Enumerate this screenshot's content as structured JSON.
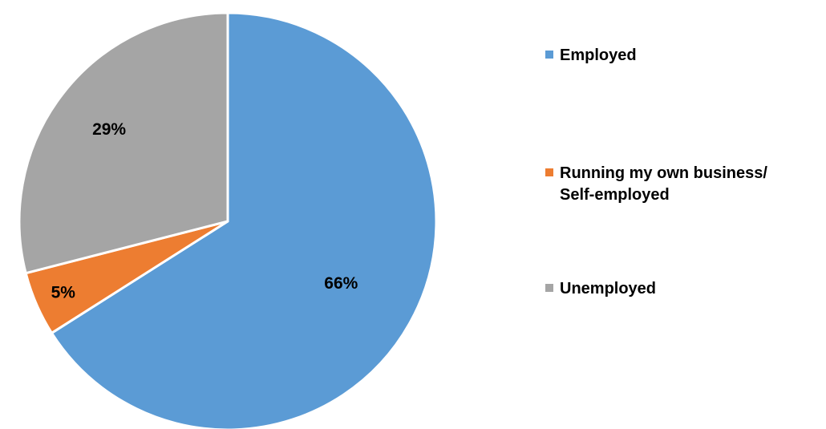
{
  "chart_data": {
    "type": "pie",
    "categories": [
      "Employed",
      "Running my own business/ Self-employed",
      "Unemployed"
    ],
    "values": [
      66,
      5,
      29
    ],
    "labels": [
      "66%",
      "5%",
      "29%"
    ],
    "colors": [
      "#5B9BD5",
      "#ED7D31",
      "#A5A5A5"
    ],
    "start_angle_deg": 0,
    "direction": "clockwise",
    "legend_position": "right"
  },
  "legend": {
    "items": [
      {
        "label": "Employed",
        "color": "#5B9BD5"
      },
      {
        "label": "Running my own business/\nSelf-employed",
        "color": "#ED7D31"
      },
      {
        "label": "Unemployed",
        "color": "#A5A5A5"
      }
    ]
  }
}
